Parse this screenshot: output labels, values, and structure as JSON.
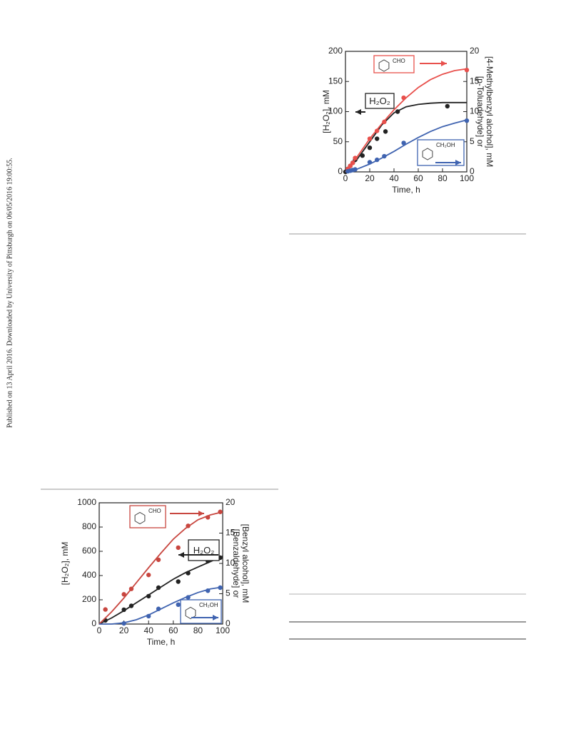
{
  "side_note": "Published on 13 April 2016. Downloaded by University of Pittsburgh on 06/05/2016 19:00:55.",
  "chart_data": [
    {
      "type": "scatter",
      "x_label": "Time, h",
      "y_label": "[H₂O₂], mM",
      "y2_label": [
        "[p-Toluadehyde] or",
        "[4-Methylbenzyl alcohol], mM"
      ],
      "xlim": [
        0,
        100
      ],
      "xticks": [
        0,
        20,
        40,
        60,
        80,
        100
      ],
      "ylim": [
        0,
        200
      ],
      "yticks": [
        0,
        50,
        100,
        150,
        200
      ],
      "y2lim": [
        0,
        20
      ],
      "y2ticks": [
        0,
        5,
        10,
        15,
        20
      ],
      "series": [
        {
          "name": "H₂O₂",
          "color": "#222222",
          "axis": "y",
          "x": [
            0,
            2,
            4,
            6,
            8,
            14,
            20,
            26,
            33,
            43,
            84
          ],
          "values": [
            0,
            5,
            10,
            15,
            20,
            27,
            40,
            55,
            67,
            100,
            109
          ],
          "fit_x": [
            0,
            10,
            20,
            30,
            40,
            50,
            60,
            70,
            80,
            90,
            100
          ],
          "fit_values": [
            0,
            22,
            50,
            78,
            98,
            108,
            112,
            114,
            115,
            115,
            115
          ]
        },
        {
          "name": "CHO",
          "color": "#e8504c",
          "axis": "y2",
          "x": [
            2,
            4,
            6,
            8,
            20,
            26,
            32,
            48,
            100
          ],
          "values": [
            0.5,
            1,
            1.5,
            2.3,
            5.5,
            6.8,
            8.3,
            12.3,
            16.9
          ],
          "fit_x": [
            0,
            10,
            20,
            30,
            40,
            50,
            60,
            70,
            80,
            90,
            100
          ],
          "fit_values": [
            0,
            2.6,
            5.5,
            8,
            10.3,
            12.3,
            14,
            15.3,
            16.2,
            16.8,
            17.1
          ]
        },
        {
          "name": "CH₂OH",
          "color": "#3f63b0",
          "axis": "y2",
          "x": [
            2,
            4,
            6,
            8,
            20,
            26,
            32,
            48,
            100
          ],
          "values": [
            0.1,
            0.2,
            0.3,
            0.4,
            1.6,
            2,
            2.6,
            4.8,
            8.5
          ],
          "fit_x": [
            0,
            10,
            20,
            30,
            40,
            50,
            60,
            70,
            80,
            90,
            100
          ],
          "fit_values": [
            0,
            0.5,
            1.3,
            2.3,
            3.4,
            4.6,
            5.7,
            6.7,
            7.5,
            8.1,
            8.6
          ]
        }
      ]
    },
    {
      "type": "scatter",
      "x_label": "Time, h",
      "y_label": "[H₂O₂], mM",
      "y2_label": [
        "[Benzaldehyde] or",
        "[Benzyl alcohol], mM"
      ],
      "xlim": [
        0,
        100
      ],
      "xticks": [
        0,
        20,
        40,
        60,
        80,
        100
      ],
      "ylim": [
        0,
        1000
      ],
      "yticks": [
        0,
        200,
        400,
        600,
        800,
        1000
      ],
      "y2lim": [
        0,
        20
      ],
      "y2ticks": [
        0,
        5,
        10,
        15,
        20
      ],
      "series": [
        {
          "name": "H₂O₂",
          "color": "#222222",
          "axis": "y",
          "x": [
            5,
            20,
            26,
            40,
            48,
            64,
            72,
            88,
            98
          ],
          "values": [
            30,
            118,
            150,
            230,
            300,
            350,
            420,
            520,
            547
          ],
          "fit_x": [
            0,
            10,
            20,
            30,
            40,
            50,
            60,
            70,
            80,
            90,
            100
          ],
          "fit_values": [
            0,
            50,
            110,
            175,
            240,
            305,
            370,
            425,
            470,
            515,
            560
          ]
        },
        {
          "name": "CHO",
          "color": "#c8463f",
          "axis": "y2",
          "x": [
            5,
            20,
            26,
            40,
            48,
            64,
            72,
            88,
            98
          ],
          "values": [
            2.4,
            4.9,
            5.8,
            8.1,
            10.6,
            12.6,
            16.2,
            17.6,
            18.5
          ],
          "fit_x": [
            0,
            10,
            20,
            30,
            40,
            50,
            60,
            70,
            80,
            90,
            100
          ],
          "fit_values": [
            0,
            2,
            4.3,
            6.8,
            9.3,
            11.7,
            14,
            15.8,
            17.2,
            18,
            18.5
          ]
        },
        {
          "name": "CH₂OH",
          "color": "#3f63b0",
          "axis": "y2",
          "x": [
            20,
            40,
            48,
            64,
            72,
            88,
            98
          ],
          "values": [
            0.1,
            1.3,
            2.5,
            3.2,
            4.4,
            5.5,
            6
          ],
          "fit_x": [
            0,
            10,
            20,
            30,
            40,
            50,
            60,
            70,
            80,
            90,
            100
          ],
          "fit_values": [
            0,
            0,
            0.2,
            0.7,
            1.5,
            2.5,
            3.5,
            4.4,
            5.2,
            5.8,
            6.1
          ]
        }
      ]
    }
  ]
}
